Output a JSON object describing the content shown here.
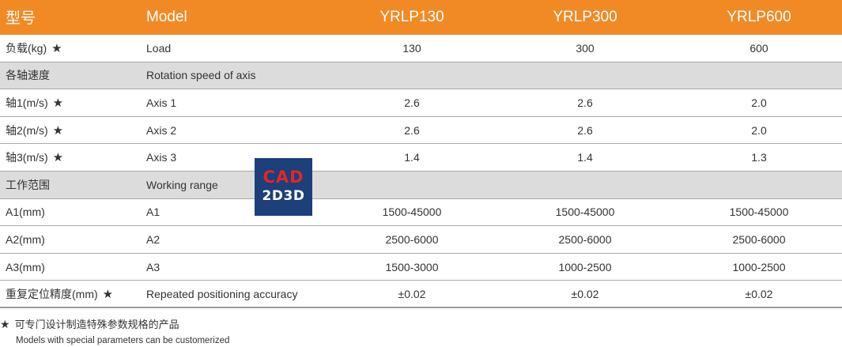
{
  "header": {
    "label_cn": "型号",
    "label_en": "Model",
    "models": [
      "YRLP130",
      "YRLP300",
      "YRLP600"
    ]
  },
  "rows": [
    {
      "type": "data",
      "cn": "负载(kg)",
      "star": "★",
      "en": "Load",
      "values": [
        "130",
        "300",
        "600"
      ]
    },
    {
      "type": "section",
      "cn": "各轴速度",
      "star": "",
      "en": "Rotation speed of axis",
      "values": [
        "",
        "",
        ""
      ]
    },
    {
      "type": "data",
      "cn": "轴1(m/s)",
      "star": "★",
      "en": "Axis 1",
      "values": [
        "2.6",
        "2.6",
        "2.0"
      ]
    },
    {
      "type": "data",
      "cn": "轴2(m/s)",
      "star": "★",
      "en": "Axis 2",
      "values": [
        "2.6",
        "2.6",
        "2.0"
      ]
    },
    {
      "type": "data",
      "cn": "轴3(m/s)",
      "star": "★",
      "en": "Axis 3",
      "values": [
        "1.4",
        "1.4",
        "1.3"
      ]
    },
    {
      "type": "section",
      "cn": "工作范围",
      "star": "",
      "en": "Working range",
      "values": [
        "",
        "",
        ""
      ]
    },
    {
      "type": "data",
      "cn": "A1(mm)",
      "star": "",
      "en": "A1",
      "values": [
        "1500-45000",
        "1500-45000",
        "1500-45000"
      ]
    },
    {
      "type": "data",
      "cn": "A2(mm)",
      "star": "",
      "en": "A2",
      "values": [
        "2500-6000",
        "2500-6000",
        "2500-6000"
      ]
    },
    {
      "type": "data",
      "cn": "A3(mm)",
      "star": "",
      "en": "A3",
      "values": [
        "1500-3000",
        "1000-2500",
        "1000-2500"
      ]
    },
    {
      "type": "data",
      "cn": "重复定位精度(mm)",
      "star": "★",
      "en": "Repeated positioning accuracy",
      "values": [
        "±0.02",
        "±0.02",
        "±0.02"
      ]
    }
  ],
  "watermark": {
    "top": "CAD",
    "bottom": "2D3D"
  },
  "footnote": {
    "star": "★",
    "cn": "可专门设计制造特殊参数规格的产品",
    "en": "Models with special parameters can be customerized"
  },
  "colors": {
    "header_bg": "#f18a25",
    "section_bg": "#dcdcdc",
    "watermark_bg": "#1d3f7a",
    "watermark_accent": "#e2252b"
  }
}
